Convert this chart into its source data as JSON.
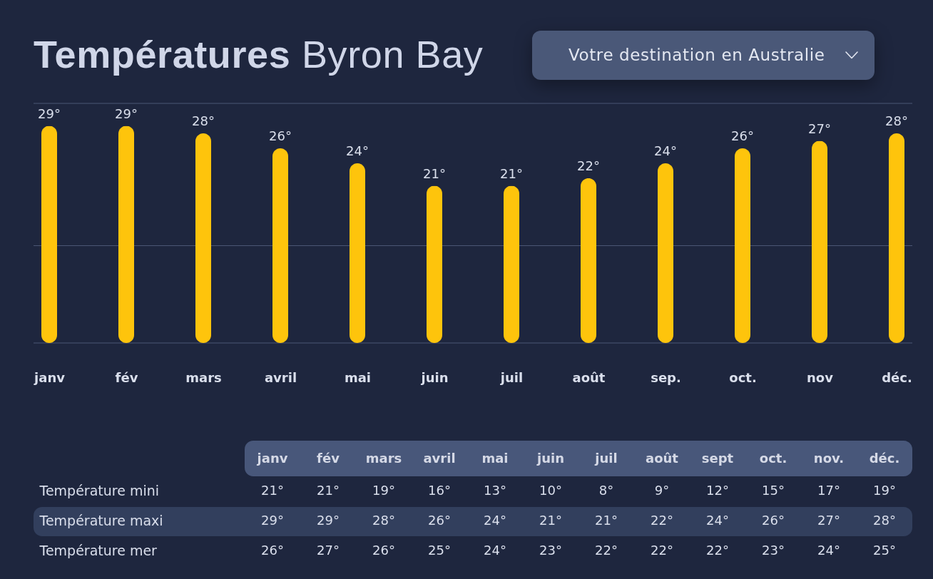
{
  "chart_data": [
    {
      "type": "bar",
      "title": "Températures Byron Bay",
      "annotations": [
        "Votre destination en Australie"
      ],
      "categories": [
        "janv",
        "fév",
        "mars",
        "avril",
        "mai",
        "juin",
        "juil",
        "août",
        "sep.",
        "oct.",
        "nov",
        "déc."
      ],
      "values": [
        29,
        29,
        28,
        26,
        24,
        21,
        21,
        22,
        24,
        26,
        27,
        28
      ],
      "value_labels": [
        "29°",
        "29°",
        "28°",
        "26°",
        "24°",
        "21°",
        "21°",
        "22°",
        "24°",
        "26°",
        "27°",
        "28°"
      ],
      "color": "#fec40c",
      "ylim": [
        0,
        32
      ],
      "ref_lines": [
        {
          "axis": "y",
          "value": 0,
          "color": "#4b5674"
        },
        {
          "axis": "y",
          "value": 13,
          "color": "#4b5674"
        },
        {
          "axis": "y",
          "value": 32,
          "color": "#4b5674"
        }
      ],
      "tick_labels": "x"
    },
    {
      "type": "heatmap",
      "categories": [
        "janv",
        "fév",
        "mars",
        "avril",
        "mai",
        "juin",
        "juil",
        "août",
        "sept",
        "oct.",
        "nov.",
        "déc."
      ],
      "y_categories": [
        "Température mini",
        "Température maxi",
        "Température mer"
      ],
      "cells": [
        [
          21,
          21,
          19,
          16,
          13,
          10,
          8,
          9,
          12,
          15,
          17,
          19
        ],
        [
          29,
          29,
          28,
          26,
          24,
          21,
          21,
          22,
          24,
          26,
          27,
          28
        ],
        [
          26,
          27,
          26,
          25,
          24,
          23,
          22,
          22,
          22,
          23,
          24,
          25
        ]
      ],
      "cell_labels": [
        [
          "21°",
          "21°",
          "19°",
          "16°",
          "13°",
          "10°",
          "8°",
          "9°",
          "12°",
          "15°",
          "17°",
          "19°"
        ],
        [
          "29°",
          "29°",
          "28°",
          "26°",
          "24°",
          "21°",
          "21°",
          "22°",
          "24°",
          "26°",
          "27°",
          "28°"
        ],
        [
          "26°",
          "27°",
          "26°",
          "25°",
          "24°",
          "23°",
          "22°",
          "22°",
          "22°",
          "23°",
          "24°",
          "25°"
        ]
      ]
    }
  ]
}
